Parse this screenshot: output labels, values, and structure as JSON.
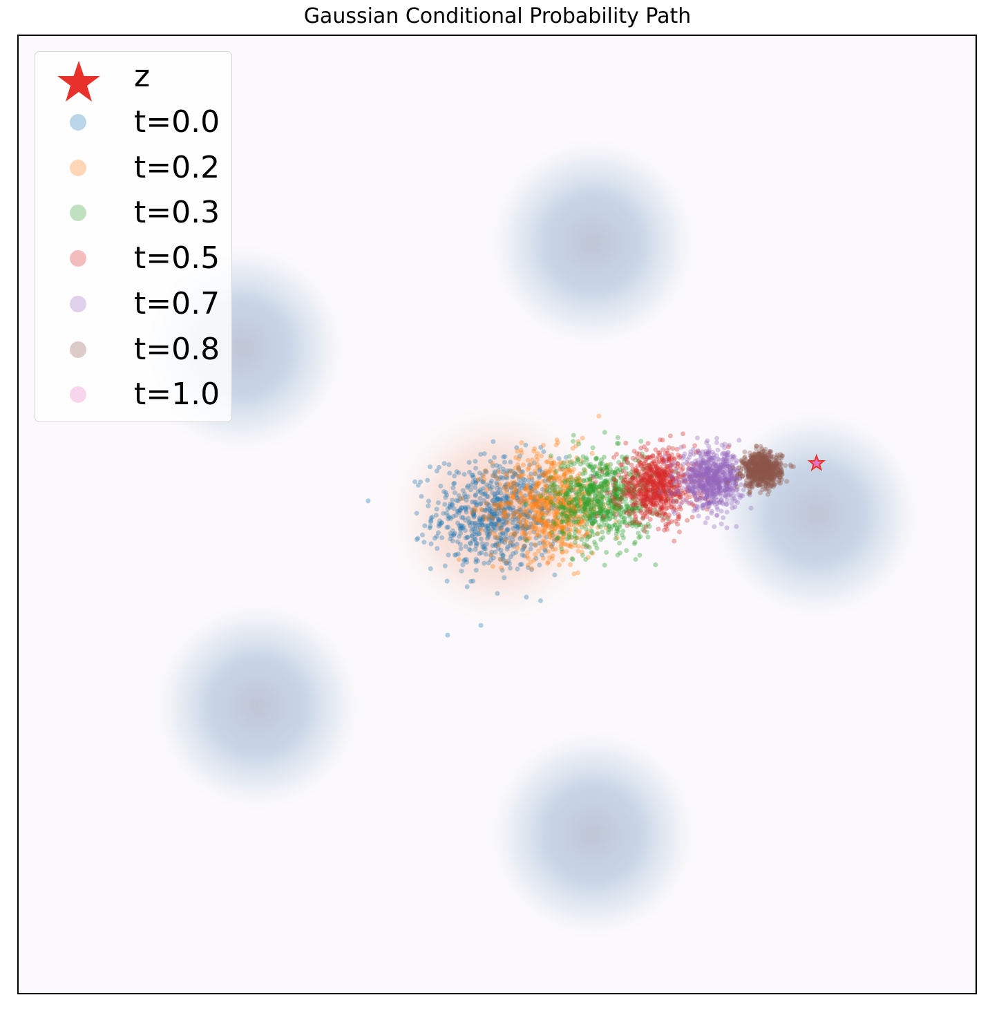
{
  "chart_data": {
    "type": "scatter",
    "title": "Gaussian Conditional Probability Path",
    "xlabel": "",
    "ylabel": "",
    "xlim": [
      -15,
      15
    ],
    "ylim": [
      -15,
      15
    ],
    "axis_ticks": "hidden",
    "grid": false,
    "legend_position": "upper-left",
    "background_density": {
      "description_visible": "mixture of gaussian blobs (faint blue) plus orange density around initial samples",
      "blob_centers": [
        [
          3.0,
          8.5
        ],
        [
          -8.0,
          5.2
        ],
        [
          10.0,
          0.0
        ],
        [
          -7.5,
          -6.0
        ],
        [
          3.0,
          -10.0
        ]
      ],
      "blob_std": 2.5,
      "initial_center": [
        0.0,
        0.0
      ],
      "initial_std": 3.2,
      "blob_color": "#c5d4e6",
      "initial_color": "#f5c9b8"
    },
    "target_point": {
      "name": "z",
      "x": 10.0,
      "y": 1.6,
      "marker": "star",
      "color": "#e8312a"
    },
    "series": [
      {
        "name": "t=0.0",
        "color": "#1f77b4",
        "center": [
          0.0,
          0.0
        ],
        "std": 1.0,
        "n": 700
      },
      {
        "name": "t=0.2",
        "color": "#ff7f0e",
        "center": [
          1.7,
          0.3
        ],
        "std": 0.9,
        "n": 700
      },
      {
        "name": "t=0.3",
        "color": "#2ca02c",
        "center": [
          3.3,
          0.5
        ],
        "std": 0.8,
        "n": 700
      },
      {
        "name": "t=0.5",
        "color": "#d62728",
        "center": [
          5.0,
          0.9
        ],
        "std": 0.62,
        "n": 700
      },
      {
        "name": "t=0.7",
        "color": "#9467bd",
        "center": [
          6.7,
          1.1
        ],
        "std": 0.48,
        "n": 700
      },
      {
        "name": "t=0.8",
        "color": "#8c564b",
        "center": [
          8.3,
          1.4
        ],
        "std": 0.3,
        "n": 700
      },
      {
        "name": "t=1.0",
        "color": "#e377c2",
        "center": [
          10.0,
          1.6
        ],
        "std": 0.0,
        "n": 1
      }
    ]
  },
  "legend": {
    "z_label": "z",
    "items": [
      "t=0.0",
      "t=0.2",
      "t=0.3",
      "t=0.5",
      "t=0.7",
      "t=0.8",
      "t=1.0"
    ]
  }
}
